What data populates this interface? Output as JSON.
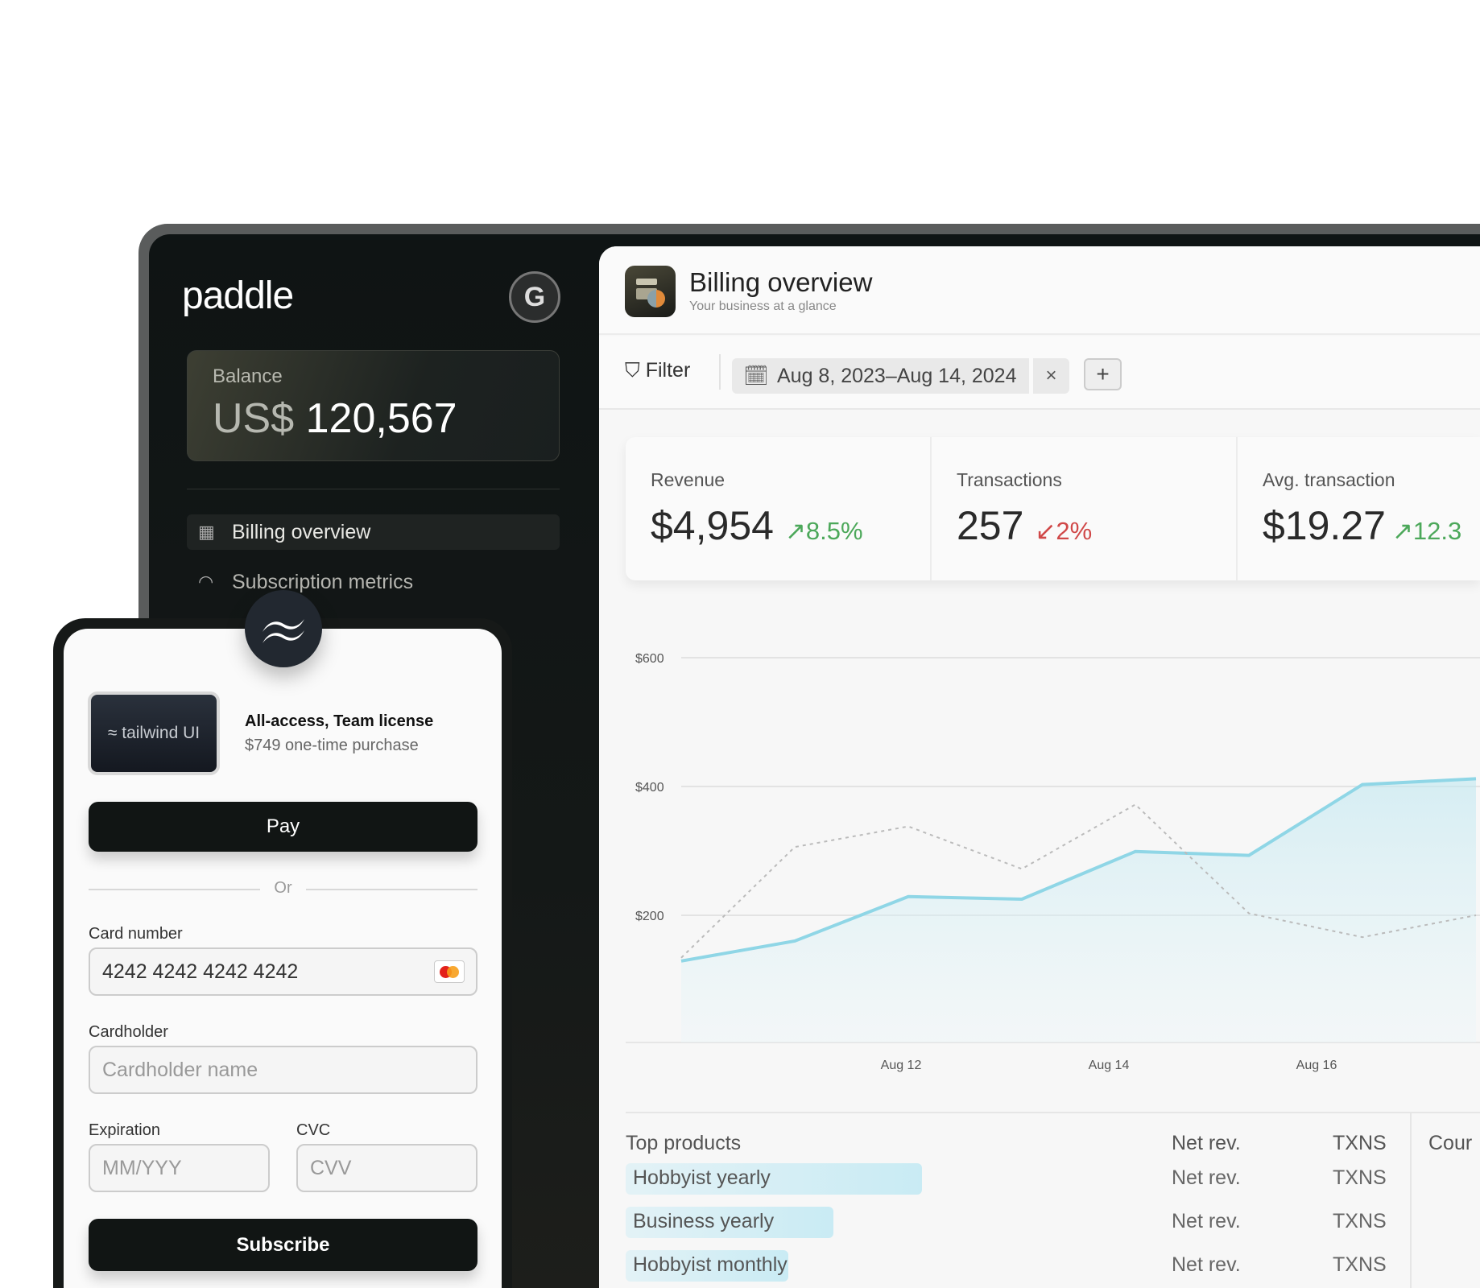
{
  "sidebar": {
    "logo": "paddle",
    "icon": "G",
    "balance_label": "Balance",
    "balance_currency": "US$",
    "balance_value": "120,567",
    "items": [
      {
        "label": "Billing overview",
        "icon": "calendar-grid-icon",
        "active": true
      },
      {
        "label": "Subscription metrics",
        "icon": "gauge-icon",
        "active": false
      }
    ]
  },
  "header": {
    "title": "Billing overview",
    "subtitle": "Your business at a glance"
  },
  "filters": {
    "filter_label": "Filter",
    "date_range": "Aug 8, 2023–Aug 14, 2024",
    "clear": "×",
    "add": "+"
  },
  "stats": [
    {
      "label": "Revenue",
      "value": "$4,954",
      "change": "8.5%",
      "dir": "up"
    },
    {
      "label": "Transactions",
      "value": "257",
      "change": "2%",
      "dir": "down"
    },
    {
      "label": "Avg. transaction",
      "value": "$19.27",
      "change": "12.3",
      "dir": "up"
    }
  ],
  "chart_data": {
    "type": "area",
    "yticks": [
      "$600",
      "$400",
      "$200"
    ],
    "ytick_values": [
      600,
      400,
      200
    ],
    "xticks": [
      "Aug 12",
      "Aug 14",
      "Aug 16"
    ],
    "grid": true,
    "series": [
      {
        "style": "solid-area",
        "color": "#8fd6e6",
        "values": [
          129,
          160,
          229,
          225,
          299,
          293,
          403,
          412
        ]
      },
      {
        "style": "dashed",
        "color": "#bbbbbb",
        "values": [
          134,
          306,
          338,
          272,
          372,
          203,
          166,
          200
        ]
      }
    ]
  },
  "products": {
    "title": "Top products",
    "col_net": "Net rev.",
    "col_txns": "TXNS",
    "next_col": "Cour",
    "rows": [
      {
        "name": "Hobbyist yearly",
        "net": "Net rev.",
        "txns": "TXNS",
        "share": 1.0
      },
      {
        "name": "Business yearly",
        "net": "Net rev.",
        "txns": "TXNS",
        "share": 0.7
      },
      {
        "name": "Hobbyist monthly",
        "net": "Net rev.",
        "txns": "TXNS",
        "share": 0.55
      }
    ]
  },
  "checkout": {
    "product_logo": "tailwind UI",
    "product_title": "All-access, Team license",
    "product_sub": "$749 one-time purchase",
    "apple_pay": "Pay",
    "or": "Or",
    "card_label": "Card number",
    "card_value": "4242 4242 4242 4242",
    "holder_label": "Cardholder",
    "holder_placeholder": "Cardholder name",
    "exp_label": "Expiration",
    "exp_placeholder": "MM/YYY",
    "cvc_label": "CVC",
    "cvc_placeholder": "CVV",
    "subscribe": "Subscribe"
  }
}
